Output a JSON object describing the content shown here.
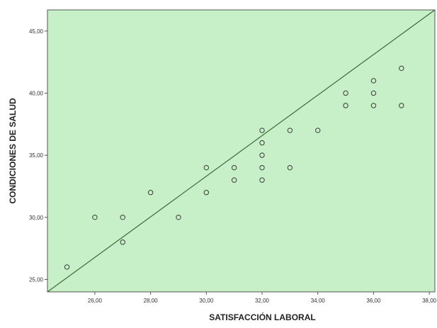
{
  "chart_data": {
    "type": "scatter",
    "title": "",
    "xlabel": "SATISFACCIÓN LABORAL",
    "ylabel": "CONDICIONES DE SALUD",
    "xlim": [
      24.3,
      38.2
    ],
    "ylim": [
      24.0,
      46.7
    ],
    "x_ticks": [
      26,
      28,
      30,
      32,
      34,
      36,
      38
    ],
    "x_tick_labels": [
      "26,00",
      "28,00",
      "30,00",
      "32,00",
      "34,00",
      "36,00",
      "38,00"
    ],
    "y_ticks": [
      25,
      30,
      35,
      40,
      45
    ],
    "y_tick_labels": [
      "25,00",
      "30,00",
      "35,00",
      "40,00",
      "45,00"
    ],
    "grid": false,
    "legend": "none",
    "plot_background": "#c8f0c8",
    "marker_color": "#3a3a3a",
    "line_color": "#3a6b3a",
    "reference_line": {
      "x": [
        24.3,
        38.2
      ],
      "y": [
        24.0,
        46.7
      ]
    },
    "points": [
      {
        "x": 25,
        "y": 26
      },
      {
        "x": 26,
        "y": 30
      },
      {
        "x": 27,
        "y": 30
      },
      {
        "x": 27,
        "y": 28
      },
      {
        "x": 28,
        "y": 32
      },
      {
        "x": 29,
        "y": 30
      },
      {
        "x": 30,
        "y": 34
      },
      {
        "x": 30,
        "y": 32
      },
      {
        "x": 31,
        "y": 34
      },
      {
        "x": 31,
        "y": 33
      },
      {
        "x": 32,
        "y": 37
      },
      {
        "x": 32,
        "y": 36
      },
      {
        "x": 32,
        "y": 35
      },
      {
        "x": 32,
        "y": 34
      },
      {
        "x": 32,
        "y": 33
      },
      {
        "x": 33,
        "y": 37
      },
      {
        "x": 33,
        "y": 34
      },
      {
        "x": 34,
        "y": 37
      },
      {
        "x": 35,
        "y": 40
      },
      {
        "x": 35,
        "y": 39
      },
      {
        "x": 36,
        "y": 41
      },
      {
        "x": 36,
        "y": 40
      },
      {
        "x": 36,
        "y": 39
      },
      {
        "x": 37,
        "y": 42
      },
      {
        "x": 37,
        "y": 39
      }
    ]
  }
}
